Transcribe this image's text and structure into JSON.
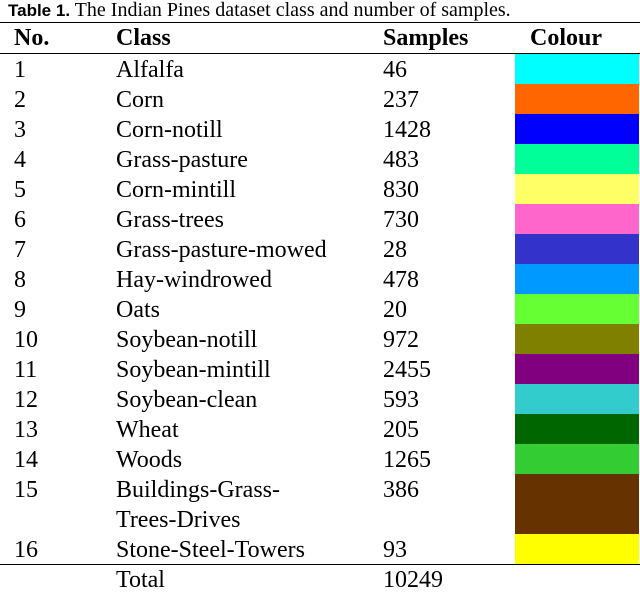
{
  "caption": {
    "label": "Table 1.",
    "text": " The Indian Pines dataset class and number of samples."
  },
  "headers": {
    "no": "No.",
    "class": "Class",
    "samples": "Samples",
    "colour": "Colour"
  },
  "rows": [
    {
      "no": "1",
      "class": "Alfalfa",
      "class2": "",
      "samples": "46",
      "colour": "#00FFFF"
    },
    {
      "no": "2",
      "class": "Corn",
      "class2": "",
      "samples": "237",
      "colour": "#FF6600"
    },
    {
      "no": "3",
      "class": "Corn-notill",
      "class2": "",
      "samples": "1428",
      "colour": "#0000FF"
    },
    {
      "no": "4",
      "class": "Grass-pasture",
      "class2": "",
      "samples": "483",
      "colour": "#00FF99"
    },
    {
      "no": "5",
      "class": "Corn-mintill",
      "class2": "",
      "samples": "830",
      "colour": "#FFFF66"
    },
    {
      "no": "6",
      "class": "Grass-trees",
      "class2": "",
      "samples": "730",
      "colour": "#FF66CC"
    },
    {
      "no": "7",
      "class": "Grass-pasture-mowed",
      "class2": "",
      "samples": "28",
      "colour": "#3333CC"
    },
    {
      "no": "8",
      "class": "Hay-windrowed",
      "class2": "",
      "samples": "478",
      "colour": "#0099FF"
    },
    {
      "no": "9",
      "class": "Oats",
      "class2": "",
      "samples": "20",
      "colour": "#66FF33"
    },
    {
      "no": "10",
      "class": "Soybean-notill",
      "class2": "",
      "samples": "972",
      "colour": "#808000"
    },
    {
      "no": "11",
      "class": "Soybean-mintill",
      "class2": "",
      "samples": "2455",
      "colour": "#800080"
    },
    {
      "no": "12",
      "class": "Soybean-clean",
      "class2": "",
      "samples": "593",
      "colour": "#33CCCC"
    },
    {
      "no": "13",
      "class": "Wheat",
      "class2": "",
      "samples": "205",
      "colour": "#006600"
    },
    {
      "no": "14",
      "class": "Woods",
      "class2": "",
      "samples": "1265",
      "colour": "#33CC33"
    },
    {
      "no": "15",
      "class": "Buildings-Grass-",
      "class2": "Trees-Drives",
      "samples": "386",
      "colour": "#663300"
    },
    {
      "no": "16",
      "class": "Stone-Steel-Towers",
      "class2": "",
      "samples": "93",
      "colour": "#FFFF00"
    }
  ],
  "total": {
    "label": "Total",
    "samples": "10249"
  }
}
